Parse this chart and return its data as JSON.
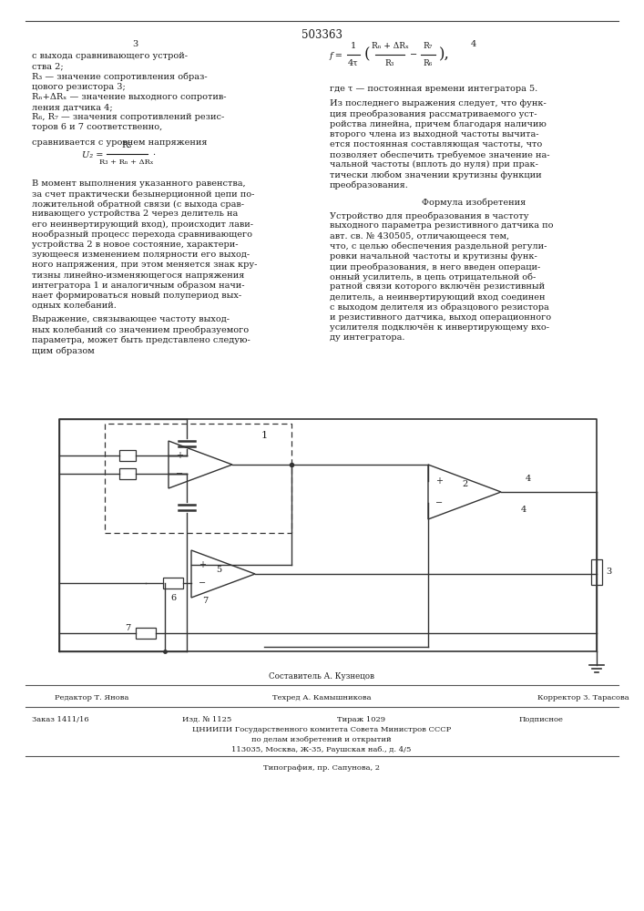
{
  "patent_number": "503363",
  "page_col_left": "3",
  "page_col_right": "4",
  "background_color": "#ffffff",
  "text_color": "#1a1a1a",
  "font_size_body": 7.0,
  "font_size_small": 6.0,
  "compiler": "Составитель А. Кузнецов",
  "editor": "Редактор Т. Янова",
  "techred": "Техред А. Камышникова",
  "corrector": "Корректор З. Тарасова",
  "order": "Заказ 1411/16",
  "izd": "Изд. № 1125",
  "tiraz": "Тираж 1029",
  "podpisnoe": "Подписное",
  "cniip1": "ЦНИИПИ Государственного комитета Совета Министров СССР",
  "cniip2": "по делам изобретений и открытий",
  "cniip3": "113035, Москва, Ж-35, Раушская наб., д. 4/5",
  "tipografia": "Типография, пр. Сапунова, 2"
}
